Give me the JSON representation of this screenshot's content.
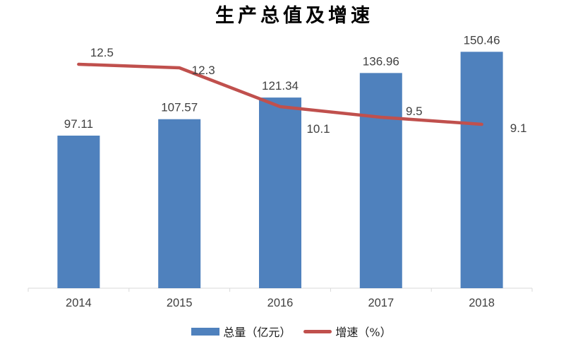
{
  "title": "生产总值及增速",
  "chart_data": {
    "type": "combo",
    "title": "生产总值及增速",
    "categories": [
      "2014",
      "2015",
      "2016",
      "2017",
      "2018"
    ],
    "series": [
      {
        "name": "总量（亿元）",
        "type": "bar",
        "values": [
          97.11,
          107.57,
          121.34,
          136.96,
          150.46
        ],
        "color": "#4F81BD"
      },
      {
        "name": "增速（%）",
        "type": "line",
        "values": [
          12.5,
          12.3,
          10.1,
          9.5,
          9.1
        ],
        "color": "#C0504D"
      }
    ],
    "xlabel": "",
    "ylabel": "",
    "grid": false,
    "y_axis_labels_visible": false,
    "data_labels_visible": true,
    "legend_position": "bottom",
    "axis_line_color": "#D9D9D9",
    "data_label_color": "#404040",
    "category_label_color": "#404040"
  },
  "legend": {
    "items": [
      {
        "label": "总量（亿元）",
        "swatch": "bar",
        "color": "#4F81BD"
      },
      {
        "label": "增速（%）",
        "swatch": "line",
        "color": "#C0504D"
      }
    ]
  }
}
